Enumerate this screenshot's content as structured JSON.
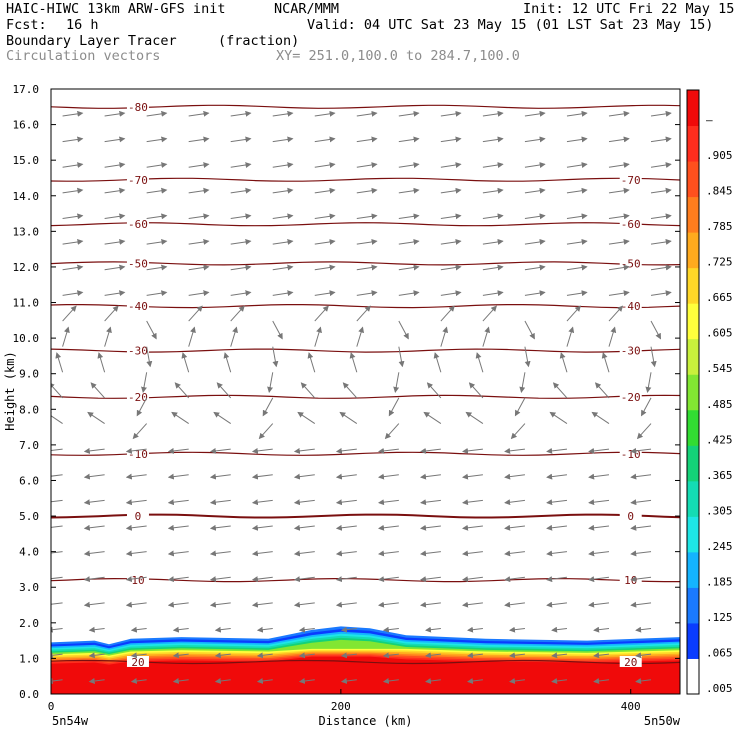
{
  "header": {
    "model": "HAIC-HIWC 13km ARW-GFS init",
    "org": "NCAR/MMM",
    "init": "Init: 12 UTC Fri 22 May 15",
    "fcst_label": "Fcst:",
    "fcst_value": "16 h",
    "valid": "Valid: 04 UTC Sat 23 May 15 (01 LST Sat 23 May 15)",
    "field1_name": "Boundary Layer Tracer",
    "field1_units": "(fraction)",
    "field2_name": "Circulation vectors",
    "xy_range": "XY= 251.0,100.0 to 284.7,100.0"
  },
  "chart_data": {
    "type": "heatmap",
    "title": "Boundary Layer Tracer (fraction)",
    "xlabel": "Distance (km)",
    "ylabel": "Height (km)",
    "xlim": [
      0,
      434
    ],
    "ylim": [
      0,
      17
    ],
    "x_ticks": [
      0,
      200,
      400
    ],
    "y_ticks": [
      "0.0",
      "1.0",
      "2.0",
      "3.0",
      "4.0",
      "5.0",
      "6.0",
      "7.0",
      "8.0",
      "9.0",
      "10.0",
      "11.0",
      "12.0",
      "13.0",
      "14.0",
      "15.0",
      "16.0",
      "17.0"
    ],
    "x_end_labels": [
      "5n54w",
      "5n50w"
    ],
    "colorbar": {
      "labels": [
        ".005",
        ".065",
        ".125",
        ".185",
        ".245",
        ".305",
        ".365",
        ".425",
        ".485",
        ".545",
        ".605",
        ".665",
        ".725",
        ".785",
        ".845",
        ".905",
        "–"
      ],
      "colors": [
        "#ffffff",
        "#0a3cff",
        "#1a7aff",
        "#14b4ff",
        "#1ee6e6",
        "#14dcb4",
        "#14d278",
        "#32dc32",
        "#82e632",
        "#c8f03c",
        "#ffff3c",
        "#ffd728",
        "#ffaa1e",
        "#ff7d1e",
        "#ff501e",
        "#ff2d1e",
        "#f00a0a"
      ]
    },
    "tracer_top_km": [
      [
        0,
        1.45
      ],
      [
        30,
        1.5
      ],
      [
        40,
        1.4
      ],
      [
        55,
        1.55
      ],
      [
        90,
        1.6
      ],
      [
        150,
        1.55
      ],
      [
        180,
        1.8
      ],
      [
        200,
        1.9
      ],
      [
        220,
        1.85
      ],
      [
        245,
        1.65
      ],
      [
        300,
        1.55
      ],
      [
        370,
        1.5
      ],
      [
        434,
        1.6
      ]
    ],
    "isotherms": [
      {
        "value": "-80",
        "height_km": 16.5
      },
      {
        "value": "-70",
        "height_km": 14.45
      },
      {
        "value": "-60",
        "height_km": 13.2
      },
      {
        "value": "-50",
        "height_km": 12.1
      },
      {
        "value": "-40",
        "height_km": 10.9
      },
      {
        "value": "-30",
        "height_km": 9.65
      },
      {
        "value": "-20",
        "height_km": 8.35
      },
      {
        "value": "-10",
        "height_km": 6.75
      },
      {
        "value": "0",
        "height_km": 5.0
      },
      {
        "value": "10",
        "height_km": 3.2
      },
      {
        "value": "20",
        "height_km": 0.9
      }
    ]
  }
}
